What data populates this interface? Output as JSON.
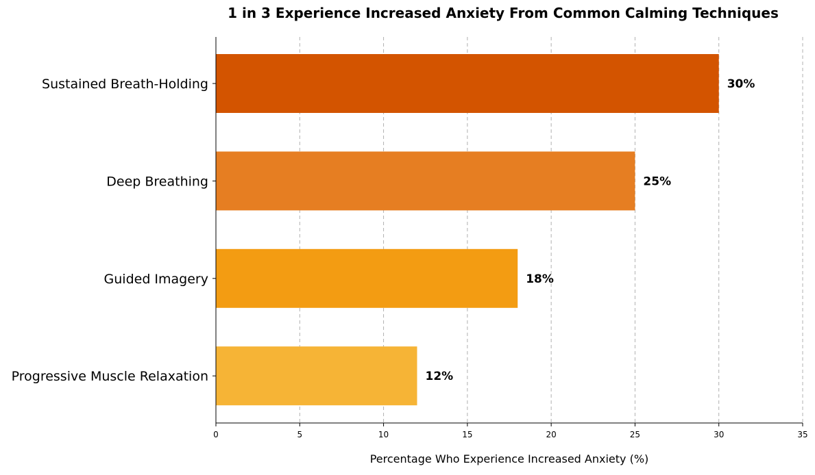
{
  "chart_data": {
    "type": "bar",
    "orientation": "horizontal",
    "title": "1 in 3 Experience Increased Anxiety From Common Calming Techniques",
    "xlabel": "Percentage Who Experience Increased Anxiety (%)",
    "ylabel": "",
    "categories": [
      "Sustained Breath-Holding",
      "Deep Breathing",
      "Guided Imagery",
      "Progressive Muscle Relaxation"
    ],
    "values": [
      30,
      25,
      18,
      12
    ],
    "value_labels": [
      "30%",
      "25%",
      "18%",
      "12%"
    ],
    "colors": [
      "#d35400",
      "#e67e22",
      "#f39c12",
      "#f6b436"
    ],
    "xlim": [
      0,
      35
    ],
    "xticks": [
      0,
      5,
      10,
      15,
      20,
      25,
      30,
      35
    ],
    "grid": "vertical dashed",
    "legend": "none"
  }
}
